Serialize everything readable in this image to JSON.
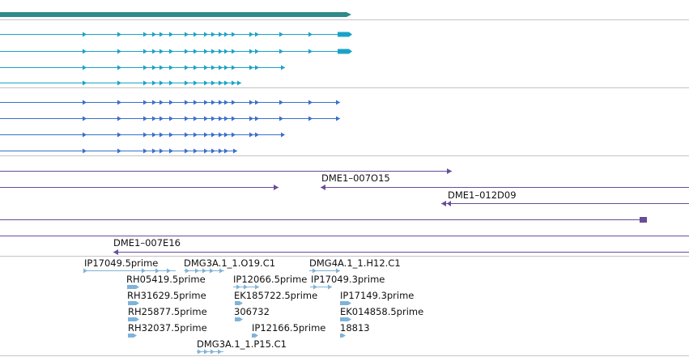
{
  "colors": {
    "gene": "#2f8a89",
    "transcript_cyan": "#1aa3c7",
    "transcript_blue": "#3a6fcc",
    "clone": "#6a4c98",
    "est": "#7fb3d9",
    "divider": "#c4c4c4"
  },
  "tracks": {
    "gene_model": {
      "feature_count": 1
    },
    "transcripts_cyan": {
      "feature_count": 4
    },
    "transcripts_blue": {
      "feature_count": 4
    },
    "clones": {
      "labels": [
        "DME1–007O15",
        "DME1–012D09",
        "DME1–007E16"
      ]
    },
    "ests": {
      "labels": [
        "IP17049.5prime",
        "DMG3A.1_1.O19.C1",
        "DMG4A.1_1.H12.C1",
        "RH05419.5prime",
        "IP12066.5prime",
        "IP17049.3prime",
        "RH31629.5prime",
        "EK185722.5prime",
        "IP17149.3prime",
        "RH25877.5prime",
        "306732",
        "EK014858.5prime",
        "RH32037.5prime",
        "IP12166.5prime",
        "18813",
        "DMG3A.1_1.P15.C1"
      ]
    }
  }
}
